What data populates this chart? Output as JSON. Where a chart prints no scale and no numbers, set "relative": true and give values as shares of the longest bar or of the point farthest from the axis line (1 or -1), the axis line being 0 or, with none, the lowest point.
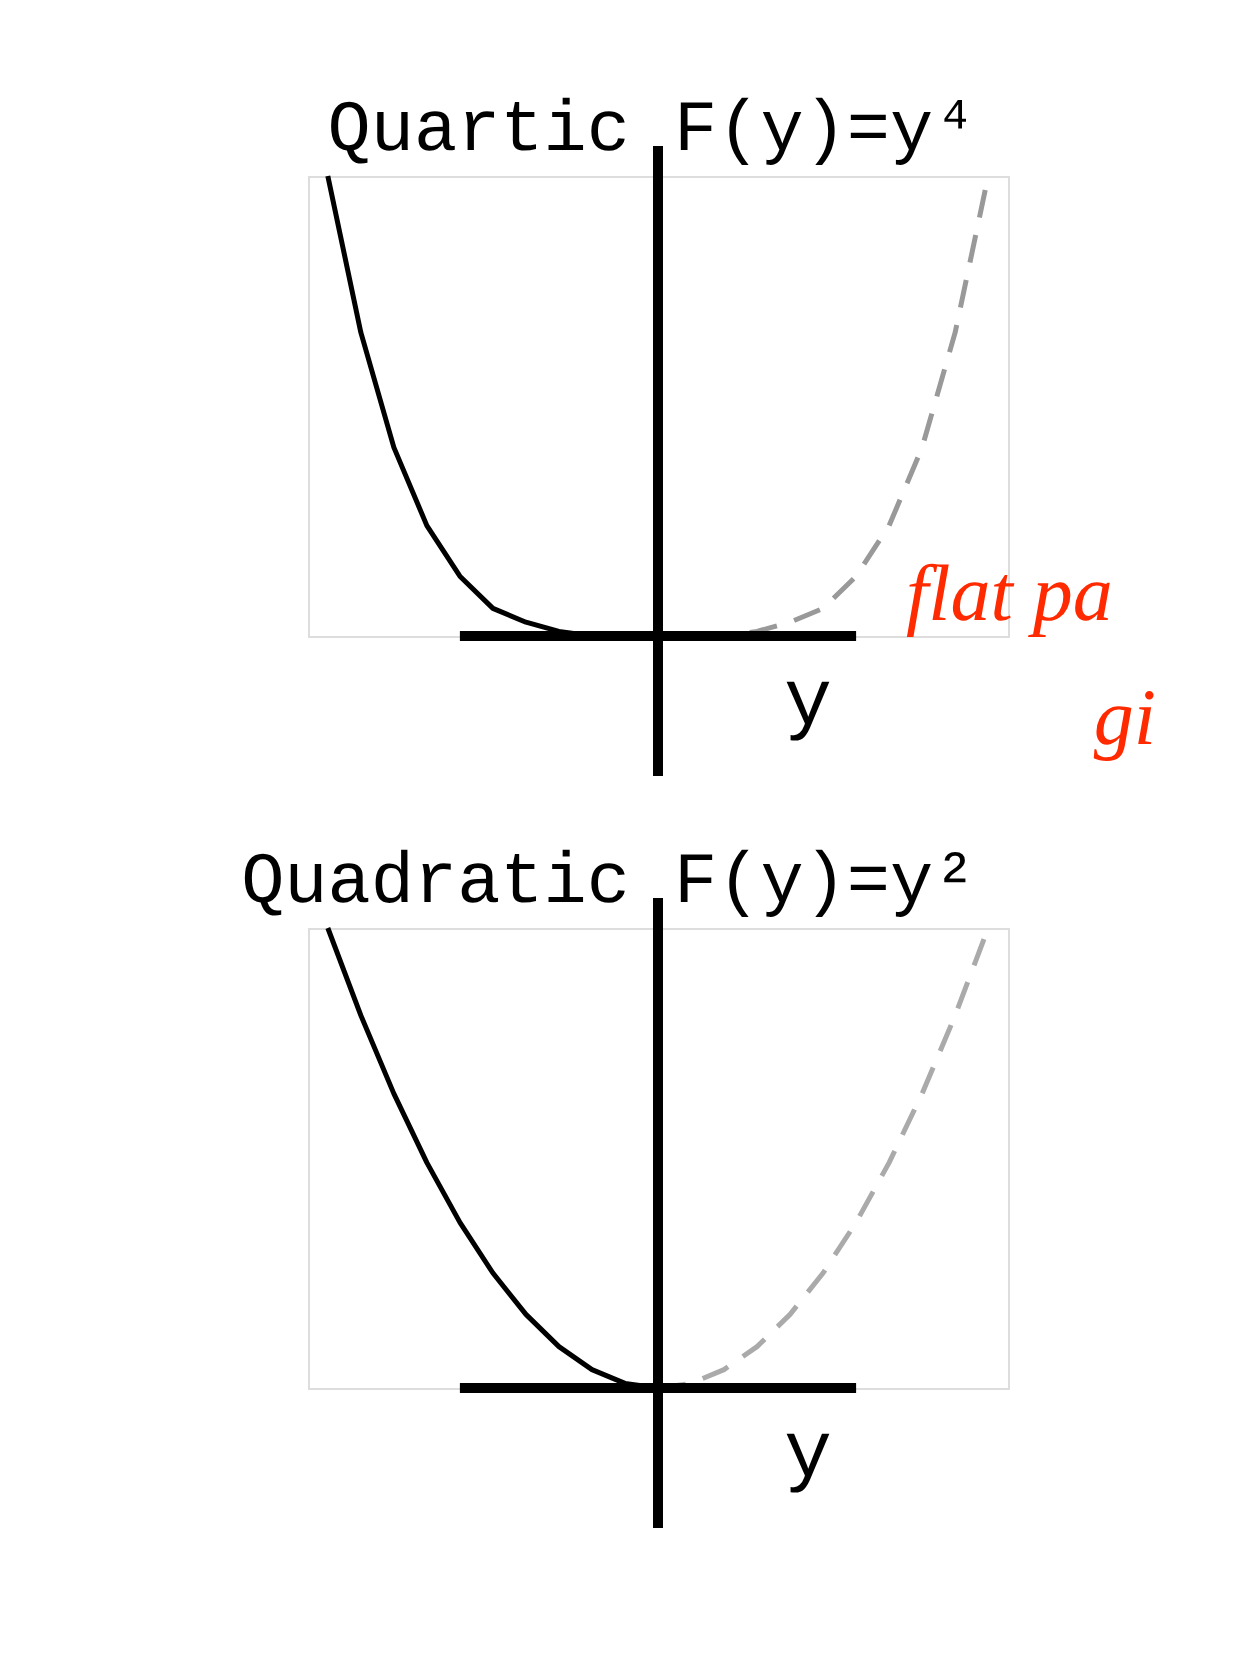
{
  "chart_data": [
    {
      "type": "line",
      "relative": true,
      "title": "Quartic",
      "ylabel": "F(y)=y⁴",
      "xlabel": "y",
      "grid": false,
      "annotations": [
        "flat pa",
        "gi"
      ],
      "categories": [
        null,
        null,
        null,
        null,
        null,
        null,
        null,
        null,
        null,
        null,
        null,
        null,
        null,
        null,
        null,
        null,
        null,
        null,
        null,
        null,
        null
      ],
      "series": [
        {
          "color": "#000000",
          "line_style": "solid",
          "values": [
            1,
            0.66,
            0.41,
            0.24,
            0.13,
            0.06,
            0.03,
            0.01,
            0,
            0,
            0,
            null,
            null,
            null,
            null,
            null,
            null,
            null,
            null,
            null,
            null
          ]
        },
        {
          "color": "#999999",
          "line_style": "dashed",
          "values": [
            null,
            null,
            null,
            null,
            null,
            null,
            null,
            null,
            null,
            null,
            0,
            0,
            0,
            0.01,
            0.03,
            0.06,
            0.13,
            0.24,
            0.41,
            0.66,
            1
          ]
        }
      ]
    },
    {
      "type": "line",
      "relative": true,
      "title": "Quadratic",
      "ylabel": "F(y)=y²",
      "xlabel": "y",
      "grid": false,
      "categories": [
        null,
        null,
        null,
        null,
        null,
        null,
        null,
        null,
        null,
        null,
        null,
        null,
        null,
        null,
        null,
        null,
        null,
        null,
        null,
        null,
        null
      ],
      "series": [
        {
          "color": "#000000",
          "line_style": "solid",
          "values": [
            1,
            0.81,
            0.64,
            0.49,
            0.36,
            0.25,
            0.16,
            0.09,
            0.04,
            0.01,
            0,
            null,
            null,
            null,
            null,
            null,
            null,
            null,
            null,
            null,
            null
          ]
        },
        {
          "color": "#aaaaaa",
          "line_style": "dashed",
          "values": [
            null,
            null,
            null,
            null,
            null,
            null,
            null,
            null,
            null,
            null,
            0,
            0.01,
            0.04,
            0.09,
            0.16,
            0.25,
            0.36,
            0.49,
            0.64,
            0.81,
            1
          ]
        }
      ]
    }
  ]
}
